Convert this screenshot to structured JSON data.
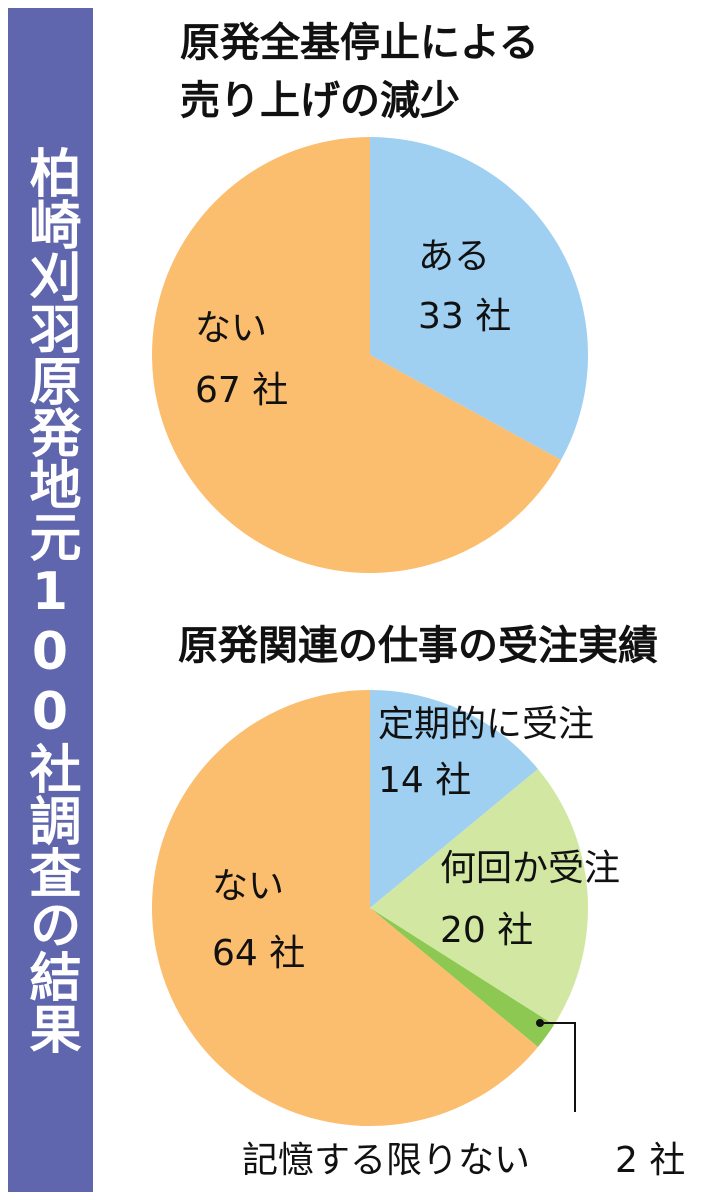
{
  "side_title": "柏崎刈羽原発地元100社調査の結果",
  "chart_data": [
    {
      "type": "pie",
      "title": [
        "原発全基停止による",
        "売り上げの減少"
      ],
      "categories": [
        "ある",
        "ない"
      ],
      "values": [
        33,
        67
      ],
      "value_labels": [
        "33 社",
        "67 社"
      ],
      "colors": [
        "#9fd0f2",
        "#fbbd6e"
      ]
    },
    {
      "type": "pie",
      "title": [
        "原発関連の仕事の受注実績"
      ],
      "categories": [
        "定期的に受注",
        "何回か受注",
        "記憶する限りない",
        "ない"
      ],
      "values": [
        14,
        20,
        2,
        64
      ],
      "value_labels": [
        "14 社",
        "20 社",
        "2 社",
        "64 社"
      ],
      "colors": [
        "#9fd0f2",
        "#d2e8a2",
        "#8dc852",
        "#fbbd6e"
      ]
    }
  ]
}
